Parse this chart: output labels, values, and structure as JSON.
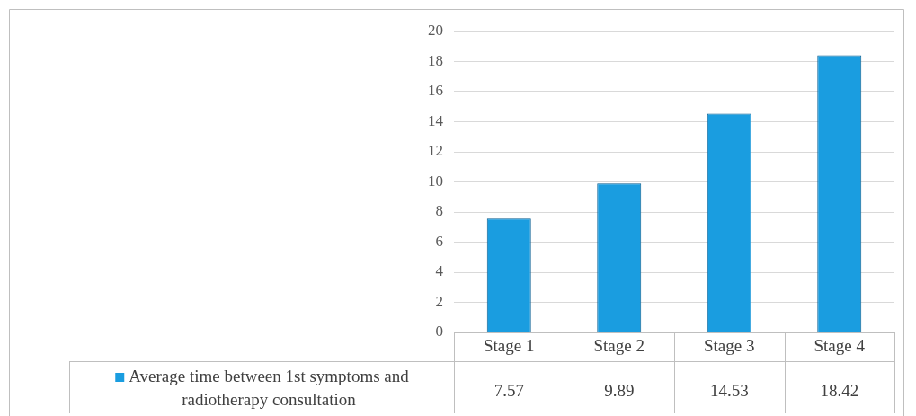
{
  "chart_data": {
    "type": "bar",
    "categories": [
      "Stage 1",
      "Stage 2",
      "Stage 3",
      "Stage 4"
    ],
    "series": [
      {
        "name": "Average time between 1st symptoms and radiotherapy consultation",
        "color": "#1a9de0",
        "values": [
          7.57,
          9.89,
          14.53,
          18.42
        ]
      }
    ],
    "ylim": [
      0,
      20
    ],
    "yticks": [
      0,
      2,
      4,
      6,
      8,
      10,
      12,
      14,
      16,
      18,
      20
    ],
    "grid": "y",
    "data_labels": true,
    "legend": "bottom left"
  }
}
